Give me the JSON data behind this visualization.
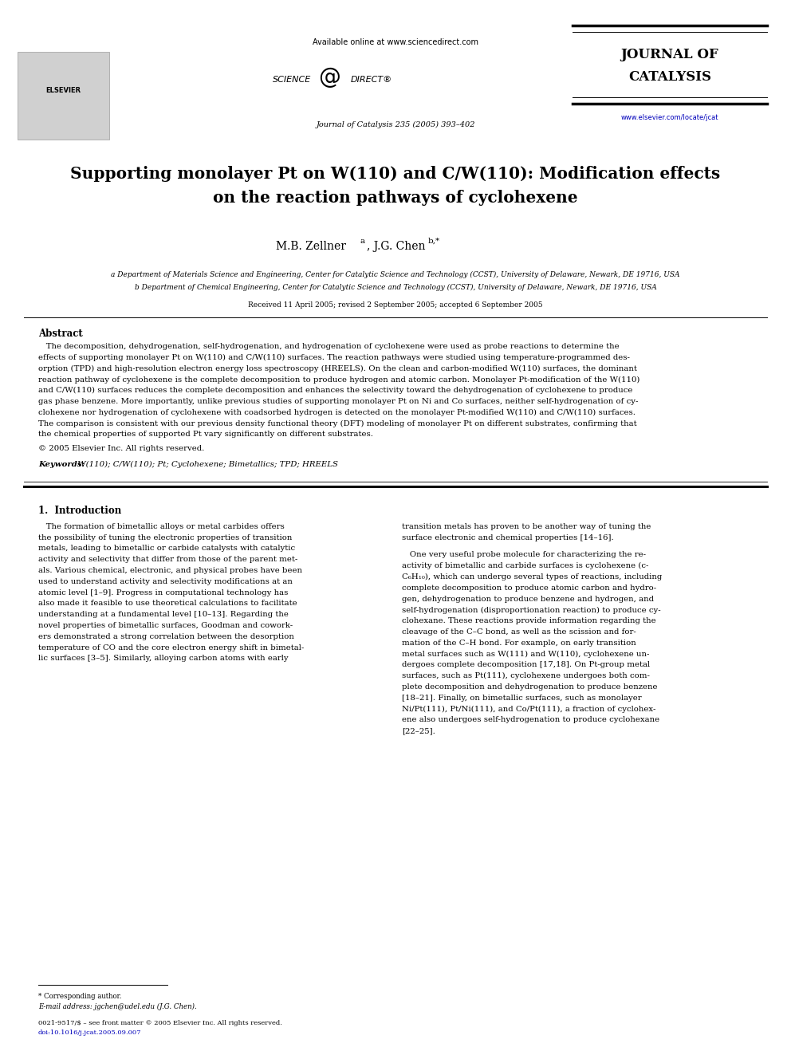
{
  "page_width": 9.92,
  "page_height": 13.23,
  "bg_color": "#ffffff",
  "text_color": "#000000",
  "link_color": "#0000bb",
  "header_available": "Available online at www.sciencedirect.com",
  "header_sd_left": "SCIENCE",
  "header_sd_right": "DIRECT",
  "header_sd_reg": "®",
  "header_cite": "Journal of Catalysis 235 (2005) 393–402",
  "header_j1": "JOURNAL OF",
  "header_j2": "CATALYSIS",
  "header_url": "www.elsevier.com/locate/jcat",
  "header_elsevier": "ELSEVIER",
  "title_line1": "Supporting monolayer Pt on W(110) and C/W(110): Modification effects",
  "title_line2": "on the reaction pathways of cyclohexene",
  "author1": "M.B. Zellner",
  "author1_sup": "a",
  "author2": ", J.G. Chen",
  "author2_sup": "b,*",
  "aff_a": "a Department of Materials Science and Engineering, Center for Catalytic Science and Technology (CCST), University of Delaware, Newark, DE 19716, USA",
  "aff_b": "b Department of Chemical Engineering, Center for Catalytic Science and Technology (CCST), University of Delaware, Newark, DE 19716, USA",
  "received": "Received 11 April 2005; revised 2 September 2005; accepted 6 September 2005",
  "abs_head": "Abstract",
  "abs_lines": [
    "   The decomposition, dehydrogenation, self-hydrogenation, and hydrogenation of cyclohexene were used as probe reactions to determine the",
    "effects of supporting monolayer Pt on W(110) and C/W(110) surfaces. The reaction pathways were studied using temperature-programmed des-",
    "orption (TPD) and high-resolution electron energy loss spectroscopy (HREELS). On the clean and carbon-modified W(110) surfaces, the dominant",
    "reaction pathway of cyclohexene is the complete decomposition to produce hydrogen and atomic carbon. Monolayer Pt-modification of the W(110)",
    "and C/W(110) surfaces reduces the complete decomposition and enhances the selectivity toward the dehydrogenation of cyclohexene to produce",
    "gas phase benzene. More importantly, unlike previous studies of supporting monolayer Pt on Ni and Co surfaces, neither self-hydrogenation of cy-",
    "clohexene nor hydrogenation of cyclohexene with coadsorbed hydrogen is detected on the monolayer Pt-modified W(110) and C/W(110) surfaces.",
    "The comparison is consistent with our previous density functional theory (DFT) modeling of monolayer Pt on different substrates, confirming that",
    "the chemical properties of supported Pt vary significantly on different substrates."
  ],
  "copyright": "© 2005 Elsevier Inc. All rights reserved.",
  "kw_label": "Keywords:",
  "kw_text": " W(110); C/W(110); Pt; Cyclohexene; Bimetallics; TPD; HREELS",
  "intro_head": "1.  Introduction",
  "col1_lines": [
    "   The formation of bimetallic alloys or metal carbides offers",
    "the possibility of tuning the electronic properties of transition",
    "metals, leading to bimetallic or carbide catalysts with catalytic",
    "activity and selectivity that differ from those of the parent met-",
    "als. Various chemical, electronic, and physical probes have been",
    "used to understand activity and selectivity modifications at an",
    "atomic level [1–9]. Progress in computational technology has",
    "also made it feasible to use theoretical calculations to facilitate",
    "understanding at a fundamental level [10–13]. Regarding the",
    "novel properties of bimetallic surfaces, Goodman and cowork-",
    "ers demonstrated a strong correlation between the desorption",
    "temperature of CO and the core electron energy shift in bimetal-",
    "lic surfaces [3–5]. Similarly, alloying carbon atoms with early"
  ],
  "col2_lines_p1": [
    "transition metals has proven to be another way of tuning the",
    "surface electronic and chemical properties [14–16]."
  ],
  "col2_lines_p2": [
    "   One very useful probe molecule for characterizing the re-",
    "activity of bimetallic and carbide surfaces is cyclohexene (c-",
    "C₆H₁₀), which can undergo several types of reactions, including",
    "complete decomposition to produce atomic carbon and hydro-",
    "gen, dehydrogenation to produce benzene and hydrogen, and",
    "self-hydrogenation (disproportionation reaction) to produce cy-",
    "clohexane. These reactions provide information regarding the",
    "cleavage of the C–C bond, as well as the scission and for-",
    "mation of the C–H bond. For example, on early transition",
    "metal surfaces such as W(111) and W(110), cyclohexene un-",
    "dergoes complete decomposition [17,18]. On Pt-group metal",
    "surfaces, such as Pt(111), cyclohexene undergoes both com-",
    "plete decomposition and dehydrogenation to produce benzene",
    "[18–21]. Finally, on bimetallic surfaces, such as monolayer",
    "Ni/Pt(111), Pt/Ni(111), and Co/Pt(111), a fraction of cyclohex-",
    "ene also undergoes self-hydrogenation to produce cyclohexane",
    "[22–25]."
  ],
  "foot_note": "* Corresponding author.",
  "foot_email": "E-mail address: jgchen@udel.edu (J.G. Chen).",
  "foot_issn": "0021-9517/$ – see front matter © 2005 Elsevier Inc. All rights reserved.",
  "foot_doi": "doi:10.1016/j.jcat.2005.09.007"
}
